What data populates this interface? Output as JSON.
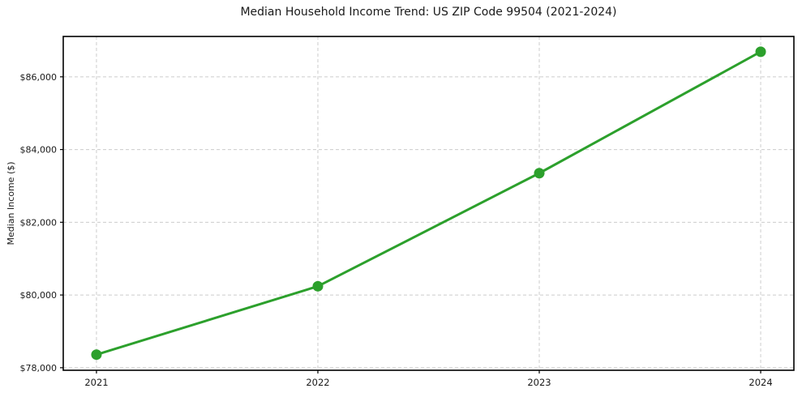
{
  "chart_data": {
    "type": "line",
    "title": "Median Household Income Trend: US ZIP Code 99504 (2021-2024)",
    "xlabel": "",
    "ylabel": "Median Income ($)",
    "x": [
      2021,
      2022,
      2023,
      2024
    ],
    "values": [
      78360,
      80240,
      83350,
      86690
    ],
    "x_ticks": [
      2021,
      2022,
      2023,
      2024
    ],
    "x_tick_labels": [
      "2021",
      "2022",
      "2023",
      "2024"
    ],
    "y_ticks": [
      78000,
      80000,
      82000,
      84000,
      86000
    ],
    "y_tick_labels": [
      "$78,000",
      "$80,000",
      "$82,000",
      "$84,000",
      "$86,000"
    ],
    "xlim": [
      2020.85,
      2024.15
    ],
    "ylim": [
      77930,
      87110
    ],
    "grid": true,
    "grid_style": "dashed",
    "legend": "none",
    "colors": {
      "line": "#2ca02c",
      "marker": "#2ca02c",
      "grid": "#cccccc",
      "spine": "#000000",
      "text": "#1a1a1a"
    }
  }
}
